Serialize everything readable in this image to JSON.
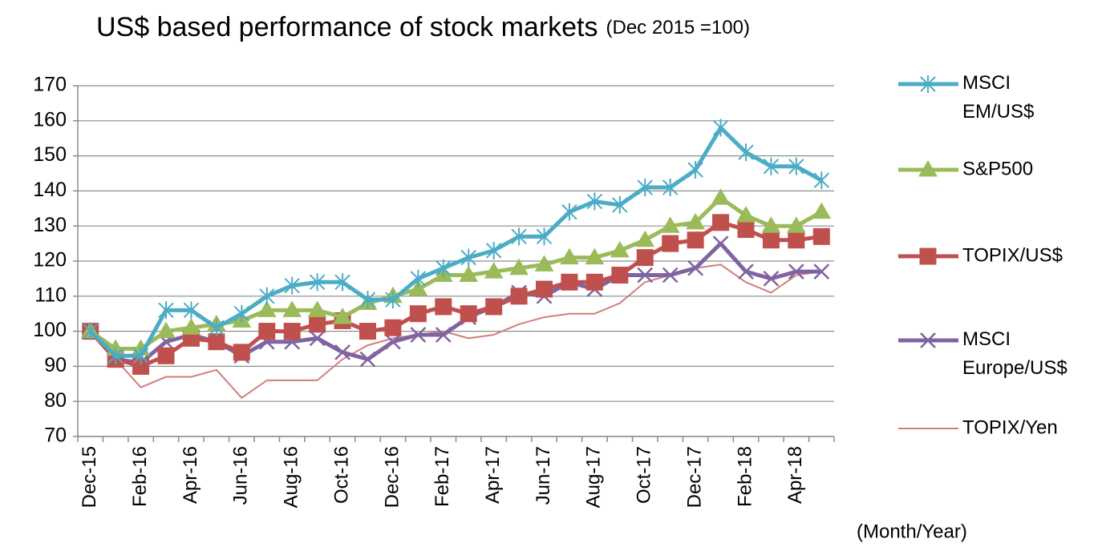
{
  "chart_data": {
    "type": "line",
    "title": "US$ based performance of stock markets",
    "subtitle": "(Dec 2015 =100)",
    "x_label": "(Month/Year)",
    "categories": [
      "Dec-15",
      null,
      "Feb-16",
      null,
      "Apr-16",
      null,
      "Jun-16",
      null,
      "Aug-16",
      null,
      "Oct-16",
      null,
      "Dec-16",
      null,
      "Feb-17",
      null,
      "Apr-17",
      null,
      "Jun-17",
      null,
      "Aug-17",
      null,
      "Oct-17",
      null,
      "Dec-17",
      null,
      "Feb-18",
      null,
      "Apr-18",
      null
    ],
    "series": [
      {
        "name": "MSCI EM/US$",
        "color": "#4bacc6",
        "marker": "asterisk",
        "values": [
          100,
          93,
          93,
          106,
          106,
          101,
          105,
          110,
          113,
          114,
          114,
          109,
          109,
          115,
          118,
          121,
          123,
          127,
          127,
          134,
          137,
          136,
          141,
          141,
          146,
          158,
          151,
          147,
          147,
          143
        ]
      },
      {
        "name": "S&P500",
        "color": "#9bbb59",
        "marker": "triangle",
        "values": [
          100,
          95,
          95,
          100,
          101,
          102,
          103,
          106,
          106,
          106,
          104,
          108,
          110,
          112,
          116,
          116,
          117,
          118,
          119,
          121,
          121,
          123,
          126,
          130,
          131,
          138,
          133,
          130,
          130,
          134
        ]
      },
      {
        "name": "TOPIX/US$",
        "color": "#c0504d",
        "marker": "square",
        "values": [
          100,
          92,
          90,
          93,
          98,
          97,
          94,
          100,
          100,
          102,
          103,
          100,
          101,
          105,
          107,
          105,
          107,
          110,
          112,
          114,
          114,
          116,
          121,
          125,
          126,
          131,
          129,
          126,
          126,
          127
        ]
      },
      {
        "name": "MSCI Europe/US$",
        "color": "#8064a2",
        "marker": "x",
        "values": [
          100,
          92,
          91,
          97,
          99,
          97,
          93,
          97,
          97,
          98,
          94,
          92,
          97,
          99,
          99,
          104,
          107,
          111,
          110,
          114,
          112,
          116,
          116,
          116,
          118,
          125,
          117,
          115,
          117,
          117
        ]
      },
      {
        "name": "TOPIX/Yen",
        "color": "#d17f7d",
        "marker": "none",
        "values": [
          100,
          92,
          84,
          87,
          87,
          89,
          81,
          86,
          86,
          86,
          92,
          96,
          98,
          99,
          100,
          98,
          99,
          102,
          104,
          105,
          105,
          108,
          114,
          116,
          118,
          119,
          114,
          111,
          116,
          117
        ]
      }
    ],
    "ylim": [
      70,
      170
    ],
    "yticks": [
      70,
      80,
      90,
      100,
      110,
      120,
      130,
      140,
      150,
      160,
      170
    ],
    "grid": true,
    "legend": "right"
  }
}
